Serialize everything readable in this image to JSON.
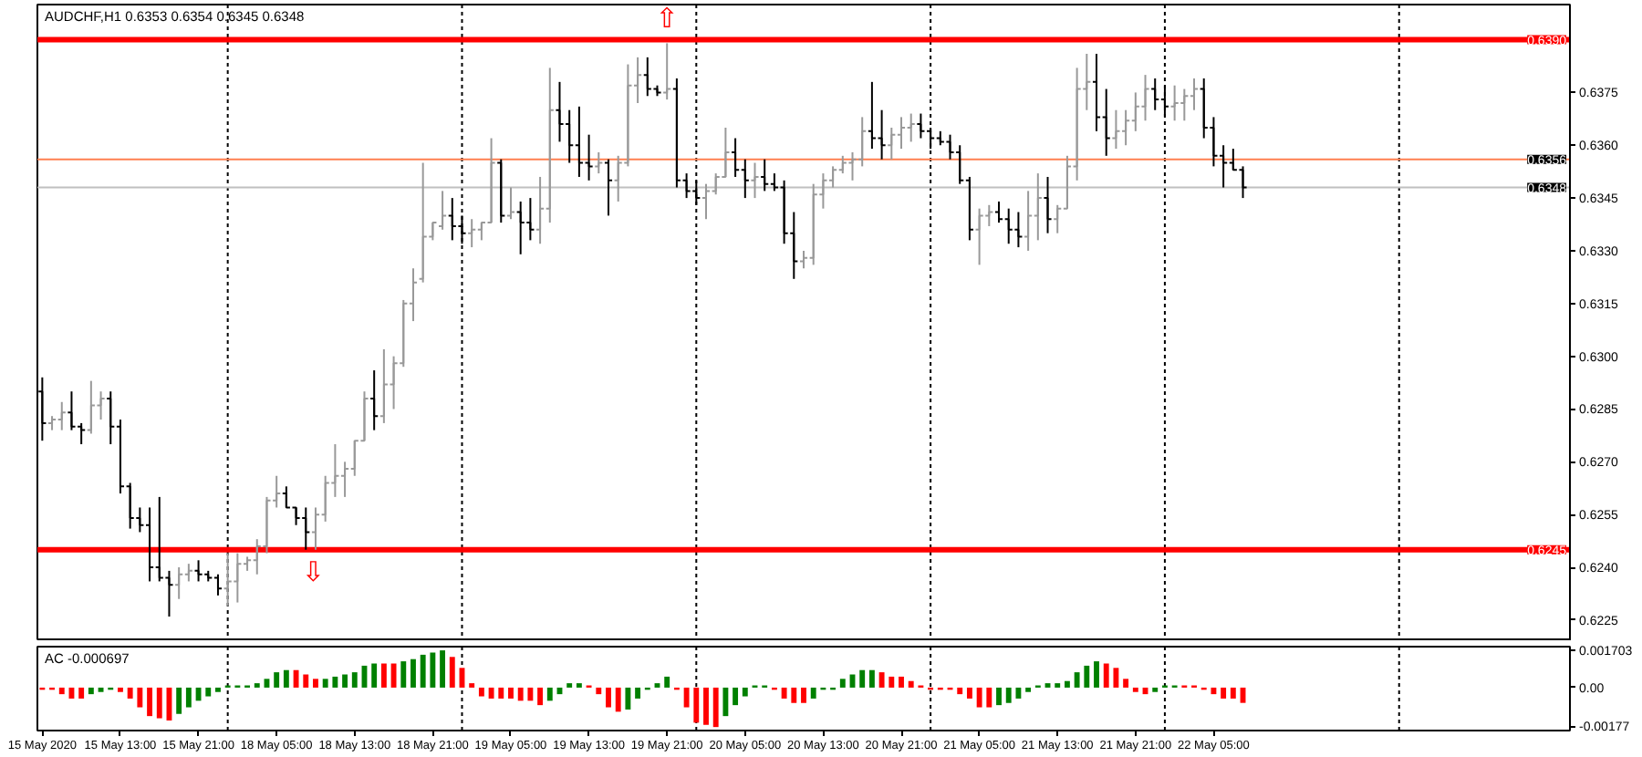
{
  "chart_data": [
    {
      "type": "candlestick",
      "title": "AUDCHF,H1 0.6353 0.6354 0.6345 0.6348",
      "categories": [
        "15 May 2020",
        null,
        null,
        null,
        null,
        null,
        null,
        null,
        "15 May 13:00",
        null,
        null,
        null,
        null,
        null,
        null,
        null,
        "15 May 21:00",
        null,
        null,
        null,
        null,
        null,
        null,
        null,
        "18 May 05:00",
        null,
        null,
        null,
        null,
        null,
        null,
        null,
        "18 May 13:00",
        null,
        null,
        null,
        null,
        null,
        null,
        null,
        "18 May 21:00",
        null,
        null,
        null,
        null,
        null,
        null,
        null,
        "19 May 05:00",
        null,
        null,
        null,
        null,
        null,
        null,
        null,
        "19 May 13:00",
        null,
        null,
        null,
        null,
        null,
        null,
        null,
        "19 May 21:00",
        null,
        null,
        null,
        null,
        null,
        null,
        null,
        "20 May 05:00",
        null,
        null,
        null,
        null,
        null,
        null,
        null,
        "20 May 13:00",
        null,
        null,
        null,
        null,
        null,
        null,
        null,
        "20 May 21:00",
        null,
        null,
        null,
        null,
        null,
        null,
        null,
        "21 May 05:00",
        null,
        null,
        null,
        null,
        null,
        null,
        null,
        "21 May 13:00",
        null,
        null,
        null,
        null,
        null,
        null,
        null,
        "21 May 21:00",
        null,
        null,
        null,
        null,
        null,
        null,
        null,
        "22 May 05:00",
        null,
        null,
        null,
        null,
        null,
        null,
        null,
        null,
        null,
        null,
        null,
        null,
        null,
        null,
        null,
        null,
        null,
        null,
        null,
        null,
        null,
        null,
        null,
        null,
        null,
        null,
        null,
        null,
        null,
        null,
        null,
        null,
        null,
        null,
        null,
        null
      ],
      "ohlc": [
        [
          0.629,
          0.6294,
          0.6276,
          0.6281
        ],
        [
          0.6281,
          0.6283,
          0.6279,
          0.6282
        ],
        [
          0.6282,
          0.6287,
          0.6279,
          0.6284
        ],
        [
          0.6284,
          0.629,
          0.6279,
          0.628
        ],
        [
          0.628,
          0.6281,
          0.6275,
          0.6279
        ],
        [
          0.6279,
          0.6293,
          0.6278,
          0.6286
        ],
        [
          0.6286,
          0.629,
          0.6282,
          0.6288
        ],
        [
          0.6288,
          0.629,
          0.6275,
          0.628
        ],
        [
          0.628,
          0.6282,
          0.6261,
          0.6263
        ],
        [
          0.6263,
          0.6264,
          0.6251,
          0.6254
        ],
        [
          0.6254,
          0.6257,
          0.625,
          0.6252
        ],
        [
          0.6252,
          0.6257,
          0.6236,
          0.624
        ],
        [
          0.624,
          0.626,
          0.6236,
          0.6237
        ],
        [
          0.6237,
          0.6239,
          0.6226,
          0.6235
        ],
        [
          0.6235,
          0.624,
          0.6231,
          0.6238
        ],
        [
          0.6238,
          0.6241,
          0.6236,
          0.6239
        ],
        [
          0.6239,
          0.6242,
          0.6236,
          0.6238
        ],
        [
          0.6238,
          0.6239,
          0.6236,
          0.6237
        ],
        [
          0.6237,
          0.6238,
          0.6232,
          0.6234
        ],
        [
          0.6234,
          0.6244,
          0.6229,
          0.6236
        ],
        [
          0.6236,
          0.6244,
          0.623,
          0.6241
        ],
        [
          0.6241,
          0.6243,
          0.6239,
          0.6242
        ],
        [
          0.6242,
          0.6248,
          0.6238,
          0.6246
        ],
        [
          0.6246,
          0.626,
          0.6244,
          0.6259
        ],
        [
          0.6259,
          0.6266,
          0.6257,
          0.6261
        ],
        [
          0.6261,
          0.6263,
          0.6257,
          0.6257
        ],
        [
          0.6257,
          0.6257,
          0.6252,
          0.6254
        ],
        [
          0.6254,
          0.6257,
          0.6245,
          0.625
        ],
        [
          0.625,
          0.6257,
          0.6245,
          0.6255
        ],
        [
          0.6255,
          0.6266,
          0.6253,
          0.6264
        ],
        [
          0.6264,
          0.6275,
          0.626,
          0.6266
        ],
        [
          0.6266,
          0.627,
          0.626,
          0.6268
        ],
        [
          0.6268,
          0.6276,
          0.6266,
          0.6276
        ],
        [
          0.6276,
          0.629,
          0.6276,
          0.6288
        ],
        [
          0.6288,
          0.6296,
          0.6279,
          0.6283
        ],
        [
          0.6283,
          0.6302,
          0.6281,
          0.6292
        ],
        [
          0.6292,
          0.63,
          0.6285,
          0.6298
        ],
        [
          0.6298,
          0.6316,
          0.6297,
          0.6315
        ],
        [
          0.6315,
          0.6325,
          0.631,
          0.6321
        ],
        [
          0.6322,
          0.6355,
          0.6321,
          0.6334
        ],
        [
          0.6334,
          0.6338,
          0.6333,
          0.6338
        ],
        [
          0.6337,
          0.6347,
          0.6336,
          0.634
        ],
        [
          0.634,
          0.6345,
          0.6333,
          0.6337
        ],
        [
          0.6337,
          0.634,
          0.6332,
          0.6335
        ],
        [
          0.6335,
          0.6339,
          0.6331,
          0.6336
        ],
        [
          0.6336,
          0.6338,
          0.6333,
          0.6338
        ],
        [
          0.6338,
          0.6362,
          0.6338,
          0.6355
        ],
        [
          0.6355,
          0.6356,
          0.6338,
          0.634
        ],
        [
          0.634,
          0.6348,
          0.6339,
          0.6341
        ],
        [
          0.6341,
          0.6344,
          0.6329,
          0.6338
        ],
        [
          0.6338,
          0.6345,
          0.6333,
          0.6336
        ],
        [
          0.6336,
          0.6351,
          0.6332,
          0.6342
        ],
        [
          0.6342,
          0.6382,
          0.6338,
          0.637
        ],
        [
          0.637,
          0.6378,
          0.6361,
          0.6366
        ],
        [
          0.6366,
          0.637,
          0.6355,
          0.636
        ],
        [
          0.636,
          0.6371,
          0.6351,
          0.6355
        ],
        [
          0.6355,
          0.6363,
          0.635,
          0.6354
        ],
        [
          0.6354,
          0.6358,
          0.6352,
          0.6355
        ],
        [
          0.6355,
          0.6356,
          0.634,
          0.635
        ],
        [
          0.635,
          0.6357,
          0.6344,
          0.6355
        ],
        [
          0.6355,
          0.6383,
          0.6354,
          0.6377
        ],
        [
          0.6377,
          0.6385,
          0.6372,
          0.638
        ],
        [
          0.638,
          0.6385,
          0.6374,
          0.6376
        ],
        [
          0.6376,
          0.6377,
          0.6374,
          0.6375
        ],
        [
          0.6375,
          0.6389,
          0.6373,
          0.6376
        ],
        [
          0.6376,
          0.6379,
          0.6348,
          0.635
        ],
        [
          0.635,
          0.6352,
          0.6345,
          0.6347
        ],
        [
          0.6347,
          0.635,
          0.6343,
          0.6345
        ],
        [
          0.6345,
          0.6349,
          0.6339,
          0.6347
        ],
        [
          0.6347,
          0.6352,
          0.6346,
          0.6351
        ],
        [
          0.6351,
          0.6365,
          0.6351,
          0.6358
        ],
        [
          0.6358,
          0.6362,
          0.6351,
          0.6353
        ],
        [
          0.6353,
          0.6356,
          0.6345,
          0.635
        ],
        [
          0.635,
          0.6355,
          0.6345,
          0.6351
        ],
        [
          0.6351,
          0.6356,
          0.6347,
          0.6349
        ],
        [
          0.6349,
          0.6352,
          0.6347,
          0.6348
        ],
        [
          0.6348,
          0.635,
          0.6332,
          0.6335
        ],
        [
          0.6335,
          0.6341,
          0.6322,
          0.6327
        ],
        [
          0.6327,
          0.633,
          0.6325,
          0.6328
        ],
        [
          0.6328,
          0.6349,
          0.6326,
          0.6346
        ],
        [
          0.6346,
          0.6352,
          0.6342,
          0.635
        ],
        [
          0.635,
          0.6354,
          0.6348,
          0.6353
        ],
        [
          0.6353,
          0.6357,
          0.6352,
          0.6355
        ],
        [
          0.6355,
          0.6358,
          0.635,
          0.6356
        ],
        [
          0.6356,
          0.6368,
          0.6354,
          0.6364
        ],
        [
          0.6364,
          0.6378,
          0.6359,
          0.6362
        ],
        [
          0.6362,
          0.637,
          0.6356,
          0.636
        ],
        [
          0.636,
          0.6365,
          0.6356,
          0.6363
        ],
        [
          0.6363,
          0.6368,
          0.6359,
          0.6365
        ],
        [
          0.6365,
          0.6369,
          0.6361,
          0.6366
        ],
        [
          0.6366,
          0.6369,
          0.6362,
          0.6364
        ],
        [
          0.6364,
          0.6365,
          0.6359,
          0.6362
        ],
        [
          0.6362,
          0.6364,
          0.636,
          0.6361
        ],
        [
          0.6361,
          0.6363,
          0.6356,
          0.6358
        ],
        [
          0.6358,
          0.636,
          0.6349,
          0.635
        ],
        [
          0.635,
          0.6351,
          0.6333,
          0.6336
        ],
        [
          0.6336,
          0.6342,
          0.6326,
          0.634
        ],
        [
          0.634,
          0.6343,
          0.6337,
          0.6341
        ],
        [
          0.6341,
          0.6344,
          0.6338,
          0.6339
        ],
        [
          0.6339,
          0.6342,
          0.6332,
          0.6336
        ],
        [
          0.6336,
          0.6341,
          0.6331,
          0.6334
        ],
        [
          0.6334,
          0.6347,
          0.633,
          0.634
        ],
        [
          0.634,
          0.6352,
          0.6333,
          0.6345
        ],
        [
          0.6345,
          0.6351,
          0.6335,
          0.6339
        ],
        [
          0.6339,
          0.6343,
          0.6335,
          0.6342
        ],
        [
          0.6342,
          0.6357,
          0.6342,
          0.6354
        ],
        [
          0.6354,
          0.6382,
          0.635,
          0.6376
        ],
        [
          0.6376,
          0.6386,
          0.637,
          0.6378
        ],
        [
          0.6378,
          0.6386,
          0.6364,
          0.6368
        ],
        [
          0.6368,
          0.6376,
          0.6357,
          0.6362
        ],
        [
          0.6362,
          0.637,
          0.6359,
          0.6364
        ],
        [
          0.6364,
          0.637,
          0.636,
          0.6367
        ],
        [
          0.6367,
          0.6375,
          0.6364,
          0.6371
        ],
        [
          0.6371,
          0.638,
          0.6367,
          0.6376
        ],
        [
          0.6376,
          0.6379,
          0.637,
          0.6373
        ],
        [
          0.6373,
          0.6377,
          0.6368,
          0.6371
        ],
        [
          0.6371,
          0.6377,
          0.6367,
          0.6372
        ],
        [
          0.6372,
          0.6376,
          0.6367,
          0.6374
        ],
        [
          0.6374,
          0.6379,
          0.637,
          0.6376
        ],
        [
          0.6376,
          0.6379,
          0.6362,
          0.6365
        ],
        [
          0.6365,
          0.6368,
          0.6354,
          0.6357
        ],
        [
          0.6357,
          0.636,
          0.6348,
          0.6355
        ],
        [
          0.6355,
          0.6359,
          0.6353,
          0.6353
        ],
        [
          0.6353,
          0.6354,
          0.6345,
          0.6348
        ],
        null,
        null,
        null,
        null,
        null,
        null,
        null,
        null,
        null,
        null,
        null,
        null,
        null,
        null,
        null,
        null,
        null,
        null,
        null,
        null,
        null,
        null,
        null,
        null,
        null,
        null,
        null,
        null,
        null,
        null,
        null,
        null,
        null
      ],
      "colors": [
        "#000000",
        "#999999",
        "#999999",
        "#000000",
        "#000000",
        "#999999",
        "#999999",
        "#000000",
        "#000000",
        "#000000",
        "#000000",
        "#000000",
        "#000000",
        "#000000",
        "#999999",
        "#999999",
        "#000000",
        "#000000",
        "#000000",
        "#999999",
        "#999999",
        "#999999",
        "#999999",
        "#999999",
        "#999999",
        "#000000",
        "#000000",
        "#000000",
        "#999999",
        "#999999",
        "#999999",
        "#999999",
        "#999999",
        "#999999",
        "#000000",
        "#999999",
        "#999999",
        "#999999",
        "#999999",
        "#999999",
        "#999999",
        "#999999",
        "#000000",
        "#000000",
        "#999999",
        "#999999",
        "#999999",
        "#000000",
        "#999999",
        "#000000",
        "#000000",
        "#999999",
        "#999999",
        "#000000",
        "#000000",
        "#000000",
        "#000000",
        "#999999",
        "#000000",
        "#999999",
        "#999999",
        "#999999",
        "#000000",
        "#000000",
        "#999999",
        "#000000",
        "#000000",
        "#000000",
        "#999999",
        "#999999",
        "#999999",
        "#000000",
        "#000000",
        "#999999",
        "#000000",
        "#000000",
        "#000000",
        "#000000",
        "#999999",
        "#999999",
        "#999999",
        "#999999",
        "#999999",
        "#999999",
        "#999999",
        "#000000",
        "#000000",
        "#999999",
        "#999999",
        "#999999",
        "#000000",
        "#000000",
        "#000000",
        "#000000",
        "#000000",
        "#000000",
        "#999999",
        "#999999",
        "#000000",
        "#000000",
        "#000000",
        "#999999",
        "#999999",
        "#000000",
        "#999999",
        "#999999",
        "#999999",
        "#999999",
        "#000000",
        "#000000",
        "#999999",
        "#999999",
        "#999999",
        "#999999",
        "#000000",
        "#000000",
        "#999999",
        "#999999",
        "#999999",
        "#000000",
        "#000000",
        "#000000",
        "#000000",
        "#000000",
        null,
        null,
        null,
        null,
        null,
        null,
        null,
        null,
        null,
        null,
        null,
        null,
        null,
        null,
        null,
        null,
        null,
        null,
        null,
        null,
        null,
        null,
        null,
        null,
        null,
        null,
        null,
        null,
        null,
        null,
        null,
        null,
        null
      ],
      "ylim": [
        0.6219,
        0.64
      ],
      "yticks": [
        {
          "value": 0.6225,
          "label": "0.6225"
        },
        {
          "value": 0.624,
          "label": "0.6240"
        },
        {
          "value": 0.6255,
          "label": "0.6255"
        },
        {
          "value": 0.627,
          "label": "0.6270"
        },
        {
          "value": 0.6285,
          "label": "0.6285"
        },
        {
          "value": 0.63,
          "label": "0.6300"
        },
        {
          "value": 0.6315,
          "label": "0.6315"
        },
        {
          "value": 0.633,
          "label": "0.6330"
        },
        {
          "value": 0.6345,
          "label": "0.6345"
        },
        {
          "value": 0.636,
          "label": "0.6360"
        },
        {
          "value": 0.6375,
          "label": "0.6375"
        }
      ],
      "tick_labels": "y",
      "ref_lines": [
        {
          "axis": "y",
          "value": 0.639,
          "label": "0.6390",
          "color": "#ff0000"
        },
        {
          "axis": "y",
          "value": 0.6245,
          "label": "0.6245",
          "color": "#ff0000"
        },
        {
          "axis": "y",
          "value": 0.6356,
          "label": "0.6356",
          "color": "#ff7f50"
        },
        {
          "axis": "y",
          "value": 0.6348,
          "label": "0.6348",
          "color": "#c0c0c0"
        }
      ],
      "annotations": [
        {
          "text": "⇧",
          "x": "19 May 21:00",
          "y": 0.639
        },
        {
          "text": "⇩",
          "y": 0.6245
        }
      ]
    },
    {
      "type": "bar",
      "title": "AC -0.000697",
      "categories": [
        "15 May 2020",
        null,
        null,
        null,
        null,
        null,
        null,
        null,
        "15 May 13:00",
        null,
        null,
        null,
        null,
        null,
        null,
        null,
        "15 May 21:00",
        null,
        null,
        null,
        null,
        null,
        null,
        null,
        "18 May 05:00",
        null,
        null,
        null,
        null,
        null,
        null,
        null,
        "18 May 13:00",
        null,
        null,
        null,
        null,
        null,
        null,
        null,
        "18 May 21:00",
        null,
        null,
        null,
        null,
        null,
        null,
        null,
        "19 May 05:00",
        null,
        null,
        null,
        null,
        null,
        null,
        null,
        "19 May 13:00",
        null,
        null,
        null,
        null,
        null,
        null,
        null,
        "19 May 21:00",
        null,
        null,
        null,
        null,
        null,
        null,
        null,
        "20 May 05:00",
        null,
        null,
        null,
        null,
        null,
        null,
        null,
        "20 May 13:00",
        null,
        null,
        null,
        null,
        null,
        null,
        null,
        "20 May 21:00",
        null,
        null,
        null,
        null,
        null,
        null,
        null,
        "21 May 05:00",
        null,
        null,
        null,
        null,
        null,
        null,
        null,
        "21 May 13:00",
        null,
        null,
        null,
        null,
        null,
        null,
        null,
        "21 May 21:00",
        null,
        null,
        null,
        null,
        null,
        null,
        null,
        "22 May 05:00",
        null,
        null,
        null,
        null,
        null,
        null,
        null,
        null,
        null,
        null,
        null,
        null,
        null,
        null,
        null,
        null,
        null,
        null,
        null,
        null,
        null,
        null,
        null,
        null,
        null,
        null,
        null,
        null,
        null,
        null,
        null,
        null,
        null,
        null,
        null,
        null
      ],
      "values": [
        -0.0001,
        -0.0001,
        -0.0003,
        -0.0005,
        -0.0005,
        -0.0003,
        -0.0002,
        -0.0001,
        -0.0002,
        -0.0005,
        -0.0009,
        -0.0013,
        -0.0014,
        -0.0015,
        -0.0012,
        -0.0009,
        -0.0006,
        -0.0004,
        -0.0002,
        0.0001,
        0.0001,
        0.0001,
        0.0002,
        0.0004,
        0.0007,
        0.0008,
        0.0008,
        0.0006,
        0.0004,
        0.0004,
        0.0005,
        0.0006,
        0.0007,
        0.001,
        0.0011,
        0.0011,
        0.0011,
        0.0012,
        0.0013,
        0.0015,
        0.0016,
        0.0017,
        0.0014,
        0.0009,
        0.0002,
        -0.0004,
        -0.0005,
        -0.0005,
        -0.0005,
        -0.0006,
        -0.0006,
        -0.0008,
        -0.0006,
        -0.0003,
        0.0002,
        0.0002,
        0.0001,
        -0.0003,
        -0.0009,
        -0.0011,
        -0.001,
        -0.0005,
        -0.0001,
        0.0002,
        0.0005,
        -0.0001,
        -0.0009,
        -0.0016,
        -0.0017,
        -0.0018,
        -0.0013,
        -0.0008,
        -0.0004,
        0.0001,
        0.0001,
        -0.0001,
        -0.0005,
        -0.0007,
        -0.0007,
        -0.0005,
        -0.0001,
        -0.0001,
        0.0004,
        0.0006,
        0.0008,
        0.0008,
        0.0007,
        0.0005,
        0.0005,
        0.0003,
        0.0001,
        -0.0001,
        -0.0001,
        -0.0001,
        -0.0003,
        -0.0005,
        -0.0009,
        -0.0009,
        -0.0008,
        -0.0007,
        -0.0005,
        -0.0002,
        0.0001,
        0.0002,
        0.0002,
        0.0003,
        0.0007,
        0.001,
        0.0012,
        0.0011,
        0.0009,
        0.0004,
        -0.0002,
        -0.0003,
        -0.0002,
        0.0001,
        0.0001,
        0.0001,
        0.0001,
        -0.0001,
        -0.0003,
        -0.0005,
        -0.0005,
        -0.000697,
        null,
        null,
        null,
        null,
        null,
        null,
        null,
        null,
        null,
        null,
        null,
        null,
        null,
        null,
        null,
        null,
        null,
        null,
        null,
        null,
        null,
        null,
        null,
        null,
        null,
        null,
        null,
        null,
        null,
        null,
        null,
        null,
        null
      ],
      "colors": [
        "#ff0000",
        "#ff0000",
        "#ff0000",
        "#ff0000",
        "#ff0000",
        "#008000",
        "#008000",
        "#008000",
        "#ff0000",
        "#ff0000",
        "#ff0000",
        "#ff0000",
        "#ff0000",
        "#ff0000",
        "#008000",
        "#008000",
        "#008000",
        "#008000",
        "#008000",
        "#008000",
        "#008000",
        "#008000",
        "#008000",
        "#008000",
        "#008000",
        "#008000",
        "#ff0000",
        "#ff0000",
        "#ff0000",
        "#008000",
        "#008000",
        "#008000",
        "#008000",
        "#008000",
        "#008000",
        "#ff0000",
        "#ff0000",
        "#008000",
        "#008000",
        "#008000",
        "#008000",
        "#008000",
        "#ff0000",
        "#ff0000",
        "#ff0000",
        "#ff0000",
        "#ff0000",
        "#ff0000",
        "#ff0000",
        "#ff0000",
        "#ff0000",
        "#ff0000",
        "#008000",
        "#008000",
        "#008000",
        "#008000",
        "#ff0000",
        "#ff0000",
        "#ff0000",
        "#ff0000",
        "#008000",
        "#008000",
        "#008000",
        "#008000",
        "#008000",
        "#ff0000",
        "#ff0000",
        "#ff0000",
        "#ff0000",
        "#ff0000",
        "#008000",
        "#008000",
        "#008000",
        "#008000",
        "#008000",
        "#ff0000",
        "#ff0000",
        "#ff0000",
        "#ff0000",
        "#008000",
        "#008000",
        "#008000",
        "#008000",
        "#008000",
        "#008000",
        "#008000",
        "#ff0000",
        "#ff0000",
        "#ff0000",
        "#ff0000",
        "#ff0000",
        "#ff0000",
        "#ff0000",
        "#ff0000",
        "#ff0000",
        "#ff0000",
        "#ff0000",
        "#ff0000",
        "#008000",
        "#008000",
        "#008000",
        "#008000",
        "#008000",
        "#008000",
        "#008000",
        "#008000",
        "#008000",
        "#008000",
        "#008000",
        "#ff0000",
        "#ff0000",
        "#ff0000",
        "#ff0000",
        "#ff0000",
        "#008000",
        "#008000",
        "#008000",
        "#ff0000",
        "#ff0000",
        "#ff0000",
        "#ff0000",
        "#ff0000",
        "#ff0000",
        "#ff0000",
        null,
        null,
        null,
        null,
        null,
        null,
        null,
        null,
        null,
        null,
        null,
        null,
        null,
        null,
        null,
        null,
        null,
        null,
        null,
        null,
        null,
        null,
        null,
        null,
        null,
        null,
        null,
        null,
        null,
        null,
        null,
        null,
        null
      ],
      "ylim": [
        -0.00196,
        0.00187
      ],
      "yticks": [
        {
          "value": 0.001703,
          "label": "0.001703"
        },
        {
          "value": 0,
          "label": "0.00"
        },
        {
          "value": -0.00177,
          "label": "-0.00177"
        }
      ]
    }
  ]
}
